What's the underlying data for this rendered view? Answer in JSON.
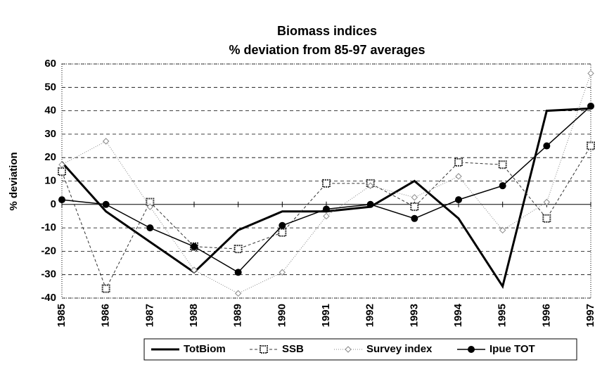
{
  "chart_data": {
    "type": "line",
    "title": "Biomass indices",
    "subtitle": "% deviation from 85-97 averages",
    "y_label": "% deviation",
    "categories": [
      "1985",
      "1986",
      "1987",
      "1988",
      "1989",
      "1990",
      "1991",
      "1992",
      "1993",
      "1994",
      "1995",
      "1996",
      "1997"
    ],
    "series": [
      {
        "name": "TotBiom",
        "color": "#000000",
        "width": 3,
        "dash": "none",
        "marker": "none",
        "values": [
          18,
          -3,
          -16,
          -29,
          -11,
          -3,
          -3,
          -1,
          10,
          -6,
          -35,
          40,
          41
        ]
      },
      {
        "name": "SSB",
        "color": "#333333",
        "width": 1,
        "dash": "4,3",
        "marker": "square",
        "values": [
          14,
          -36,
          1,
          -18,
          -19,
          -12,
          9,
          9,
          -1,
          18,
          17,
          -6,
          25
        ]
      },
      {
        "name": "Survey index",
        "color": "#888888",
        "width": 1,
        "dash": "1,2",
        "marker": "diamond",
        "values": [
          17,
          27,
          -1,
          -28,
          -38,
          -29,
          -5,
          8,
          3,
          12,
          -11,
          1,
          56
        ]
      },
      {
        "name": "Ipue TOT",
        "color": "#000000",
        "width": 1.5,
        "dash": "none",
        "marker": "circle",
        "values": [
          2,
          0,
          -10,
          -18,
          -29,
          -9,
          -2,
          0,
          -6,
          2,
          8,
          25,
          42
        ]
      }
    ],
    "ylim": [
      -40,
      60
    ],
    "yticks": [
      -40,
      -30,
      -20,
      -10,
      0,
      10,
      20,
      30,
      40,
      50,
      60
    ],
    "grid": true
  }
}
